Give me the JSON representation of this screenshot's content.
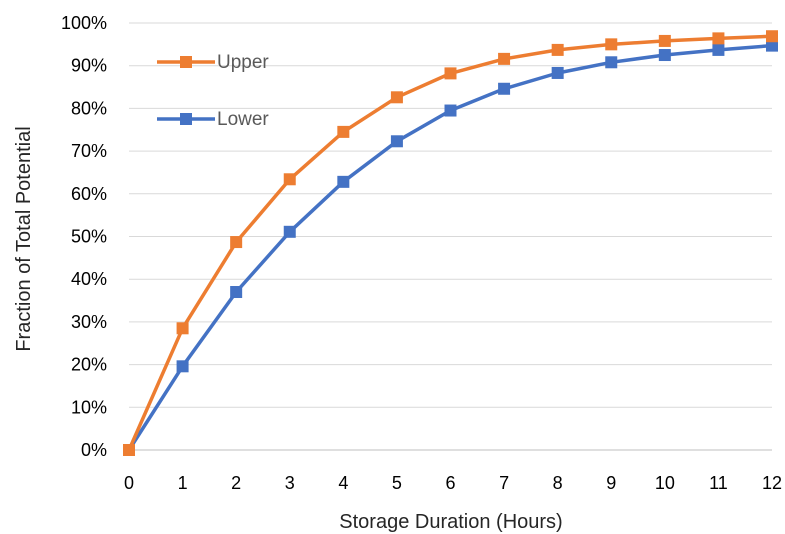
{
  "chart_data": {
    "type": "line",
    "xlabel": "Storage Duration (Hours)",
    "ylabel": "Fraction of Total Potential",
    "x": [
      0,
      1,
      2,
      3,
      4,
      5,
      6,
      7,
      8,
      9,
      10,
      11,
      12
    ],
    "x_tick_labels": [
      "0",
      "1",
      "2",
      "3",
      "4",
      "5",
      "6",
      "7",
      "8",
      "9",
      "10",
      "11",
      "12"
    ],
    "xlim": [
      0,
      12
    ],
    "ylim": [
      0,
      100
    ],
    "y_unit": "%",
    "y_tick_labels": [
      "0%",
      "10%",
      "20%",
      "30%",
      "40%",
      "50%",
      "60%",
      "70%",
      "80%",
      "90%",
      "100%"
    ],
    "grid": "horizontal",
    "legend_position": "top-left",
    "series": [
      {
        "name": "Upper",
        "color": "#ed7d31",
        "marker": "square",
        "values": [
          0,
          28.5,
          48.7,
          63.4,
          74.5,
          82.6,
          88.2,
          91.6,
          93.7,
          95.0,
          95.8,
          96.4,
          96.9
        ]
      },
      {
        "name": "Lower",
        "color": "#4472c4",
        "marker": "square",
        "values": [
          0,
          19.6,
          37.0,
          51.1,
          62.8,
          72.3,
          79.5,
          84.6,
          88.3,
          90.8,
          92.5,
          93.7,
          94.7
        ]
      }
    ]
  }
}
